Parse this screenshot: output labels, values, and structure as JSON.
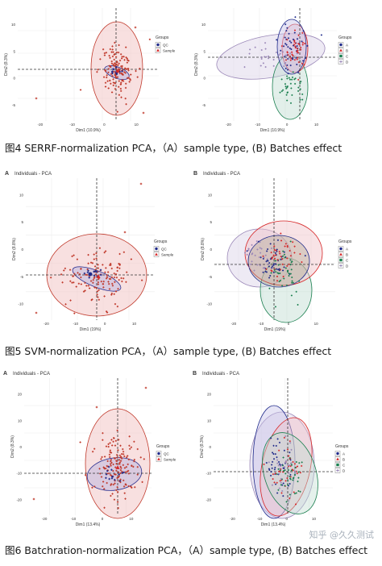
{
  "figures": [
    {
      "caption": "图4 SERRF-normalization PCA，（A）sample type, (B) Batches effect",
      "xlabel": "Dim1 (10.9%)",
      "ylabel": "Dim2 (8.3%)",
      "panelA": {
        "letter": "",
        "title": ""
      },
      "panelB": {
        "letter": "",
        "title": ""
      },
      "a_yticks": [
        "10",
        "5",
        "0",
        "-5"
      ],
      "a_xticks": [
        "-20",
        "-10",
        "0",
        "10"
      ],
      "b_yticks": [
        "10",
        "5",
        "0",
        "-5"
      ],
      "b_xticks": [
        "-20",
        "-10",
        "0",
        "10"
      ]
    },
    {
      "caption": "图5 SVM-normalization PCA，（A）sample type, (B) Batches effect",
      "xlabel": "Dim1 (19%)",
      "ylabel": "Dim2 (8.8%)",
      "panelA": {
        "letter": "A",
        "title": "Individuals - PCA"
      },
      "panelB": {
        "letter": "B",
        "title": "Individuals - PCA"
      },
      "a_yticks": [
        "10",
        "5",
        "0",
        "-5",
        "-10"
      ],
      "a_xticks": [
        "-20",
        "-10",
        "0",
        "10"
      ],
      "b_yticks": [
        "10",
        "5",
        "0",
        "-5",
        "-10"
      ],
      "b_xticks": [
        "-20",
        "-10",
        "0",
        "10"
      ]
    },
    {
      "caption": "图6 Batchration-normalization PCA，（A）sample type, (B) Batches effect",
      "xlabel": "Dim1 (13.4%)",
      "ylabel": "Dim2 (8.3%)",
      "panelA": {
        "letter": "A",
        "title": "Individuals - PCA"
      },
      "panelB": {
        "letter": "B",
        "title": "Individuals - PCA"
      },
      "a_yticks": [
        "20",
        "10",
        "0",
        "-10",
        "-20"
      ],
      "a_xticks": [
        "-20",
        "-10",
        "0",
        "10"
      ],
      "b_yticks": [
        "20",
        "10",
        "0",
        "-10",
        "-20"
      ],
      "b_xticks": [
        "-20",
        "-10",
        "0",
        "10"
      ]
    }
  ],
  "legends": {
    "title": "Groups",
    "sample_type": [
      {
        "label": "QC",
        "color": "#1f2a8a",
        "shape": "circle"
      },
      {
        "label": "Sample",
        "color": "#d62728",
        "shape": "triangle"
      }
    ],
    "batches": [
      {
        "label": "A",
        "color": "#1f2a8a",
        "shape": "circle"
      },
      {
        "label": "B",
        "color": "#d62728",
        "shape": "triangle"
      },
      {
        "label": "C",
        "color": "#1a7f4f",
        "shape": "square"
      },
      {
        "label": "D",
        "color": "#9b88b8",
        "shape": "plus"
      }
    ]
  },
  "watermark": "知乎 @久久测试",
  "chart_data": [
    {
      "type": "scatter",
      "title": "",
      "xlabel": "Dim1 (10.9%)",
      "ylabel": "Dim2 (8.3%)",
      "xlim": [
        -35,
        15
      ],
      "ylim": [
        -10,
        14
      ],
      "series": [
        {
          "name": "QC",
          "values": [
            [
              0,
              1
            ],
            [
              -1,
              0.5
            ],
            [
              1,
              -0.5
            ],
            [
              -0.5,
              0.2
            ],
            [
              0.5,
              1.2
            ],
            [
              -1.5,
              -0.4
            ]
          ]
        },
        {
          "name": "Sample",
          "values": [
            [
              -5,
              2
            ],
            [
              3,
              -1
            ],
            [
              -2,
              4
            ],
            [
              6,
              0
            ],
            [
              -7,
              -2
            ],
            [
              2,
              6
            ],
            [
              -4,
              -5
            ],
            [
              8,
              3
            ],
            [
              -1,
              -7
            ],
            [
              4,
              9
            ],
            [
              -33,
              -6
            ],
            [
              -10,
              1
            ]
          ]
        }
      ]
    },
    {
      "type": "scatter",
      "title": "",
      "xlabel": "Dim1 (10.9%)",
      "ylabel": "Dim2 (8.3%)",
      "xlim": [
        -35,
        15
      ],
      "ylim": [
        -10,
        14
      ],
      "series": [
        {
          "name": "A",
          "values": [
            [
              -2,
              3
            ],
            [
              0,
              5
            ],
            [
              -4,
              2
            ],
            [
              1,
              6
            ]
          ]
        },
        {
          "name": "B",
          "values": [
            [
              2,
              4
            ],
            [
              4,
              1
            ],
            [
              3,
              6
            ],
            [
              5,
              2
            ]
          ]
        },
        {
          "name": "C",
          "values": [
            [
              1,
              -3
            ],
            [
              3,
              -5
            ],
            [
              2,
              -2
            ],
            [
              0,
              -4
            ]
          ]
        },
        {
          "name": "D",
          "values": [
            [
              -8,
              2
            ],
            [
              -12,
              1
            ],
            [
              -6,
              -1
            ],
            [
              -10,
              4
            ]
          ]
        }
      ]
    },
    {
      "type": "scatter",
      "title": "Individuals - PCA",
      "xlabel": "Dim1 (19%)",
      "ylabel": "Dim2 (8.8%)",
      "xlim": [
        -28,
        22
      ],
      "ylim": [
        -12,
        14
      ],
      "series": [
        {
          "name": "QC",
          "values": [
            [
              -6,
              1
            ],
            [
              -5,
              0.5
            ],
            [
              -4,
              0
            ],
            [
              -7,
              1.5
            ],
            [
              -3,
              -0.5
            ]
          ]
        },
        {
          "name": "Sample",
          "values": [
            [
              -10,
              2
            ],
            [
              -2,
              -1
            ],
            [
              -14,
              5
            ],
            [
              2,
              -3
            ],
            [
              -8,
              -4
            ],
            [
              4,
              6
            ],
            [
              -16,
              0
            ],
            [
              6,
              -2
            ],
            [
              -4,
              9
            ],
            [
              1,
              -8
            ]
          ]
        }
      ]
    },
    {
      "type": "scatter",
      "title": "Individuals - PCA",
      "xlabel": "Dim1 (19%)",
      "ylabel": "Dim2 (8.8%)",
      "xlim": [
        -28,
        22
      ],
      "ylim": [
        -12,
        14
      ],
      "series": [
        {
          "name": "A",
          "values": [
            [
              -4,
              2
            ],
            [
              -2,
              4
            ],
            [
              -6,
              1
            ],
            [
              0,
              3
            ]
          ]
        },
        {
          "name": "B",
          "values": [
            [
              2,
              1
            ],
            [
              4,
              3
            ],
            [
              6,
              -1
            ],
            [
              3,
              5
            ]
          ]
        },
        {
          "name": "C",
          "values": [
            [
              5,
              2
            ],
            [
              7,
              0
            ],
            [
              8,
              3
            ],
            [
              6,
              4
            ]
          ]
        },
        {
          "name": "D",
          "values": [
            [
              -10,
              0
            ],
            [
              -8,
              -3
            ],
            [
              -12,
              2
            ],
            [
              -6,
              -2
            ]
          ]
        }
      ]
    },
    {
      "type": "scatter",
      "title": "Individuals - PCA",
      "xlabel": "Dim1 (13.4%)",
      "ylabel": "Dim2 (8.3%)",
      "xlim": [
        -30,
        20
      ],
      "ylim": [
        -24,
        24
      ],
      "series": [
        {
          "name": "QC",
          "values": [
            [
              0,
              0
            ],
            [
              -1,
              1
            ],
            [
              1,
              -1
            ],
            [
              -2,
              -0.5
            ],
            [
              2,
              0.5
            ]
          ]
        },
        {
          "name": "Sample",
          "values": [
            [
              -5,
              4
            ],
            [
              3,
              -3
            ],
            [
              -8,
              10
            ],
            [
              6,
              -8
            ],
            [
              -3,
              -12
            ],
            [
              8,
              6
            ],
            [
              -12,
              0
            ],
            [
              2,
              16
            ],
            [
              -1,
              -18
            ],
            [
              10,
              19
            ]
          ]
        }
      ]
    },
    {
      "type": "scatter",
      "title": "Individuals - PCA",
      "xlabel": "Dim1 (13.4%)",
      "ylabel": "Dim2 (8.3%)",
      "xlim": [
        -30,
        20
      ],
      "ylim": [
        -24,
        24
      ],
      "series": [
        {
          "name": "A",
          "values": [
            [
              -3,
              2
            ],
            [
              -1,
              5
            ],
            [
              -5,
              -1
            ],
            [
              0,
              1
            ]
          ]
        },
        {
          "name": "B",
          "values": [
            [
              1,
              3
            ],
            [
              3,
              0
            ],
            [
              -1,
              -3
            ],
            [
              2,
              6
            ]
          ]
        },
        {
          "name": "C",
          "values": [
            [
              4,
              -2
            ],
            [
              6,
              0
            ],
            [
              5,
              -4
            ],
            [
              3,
              -1
            ]
          ]
        },
        {
          "name": "D",
          "values": [
            [
              -6,
              1
            ],
            [
              -4,
              -4
            ],
            [
              -8,
              3
            ],
            [
              -2,
              -6
            ]
          ]
        }
      ]
    }
  ]
}
